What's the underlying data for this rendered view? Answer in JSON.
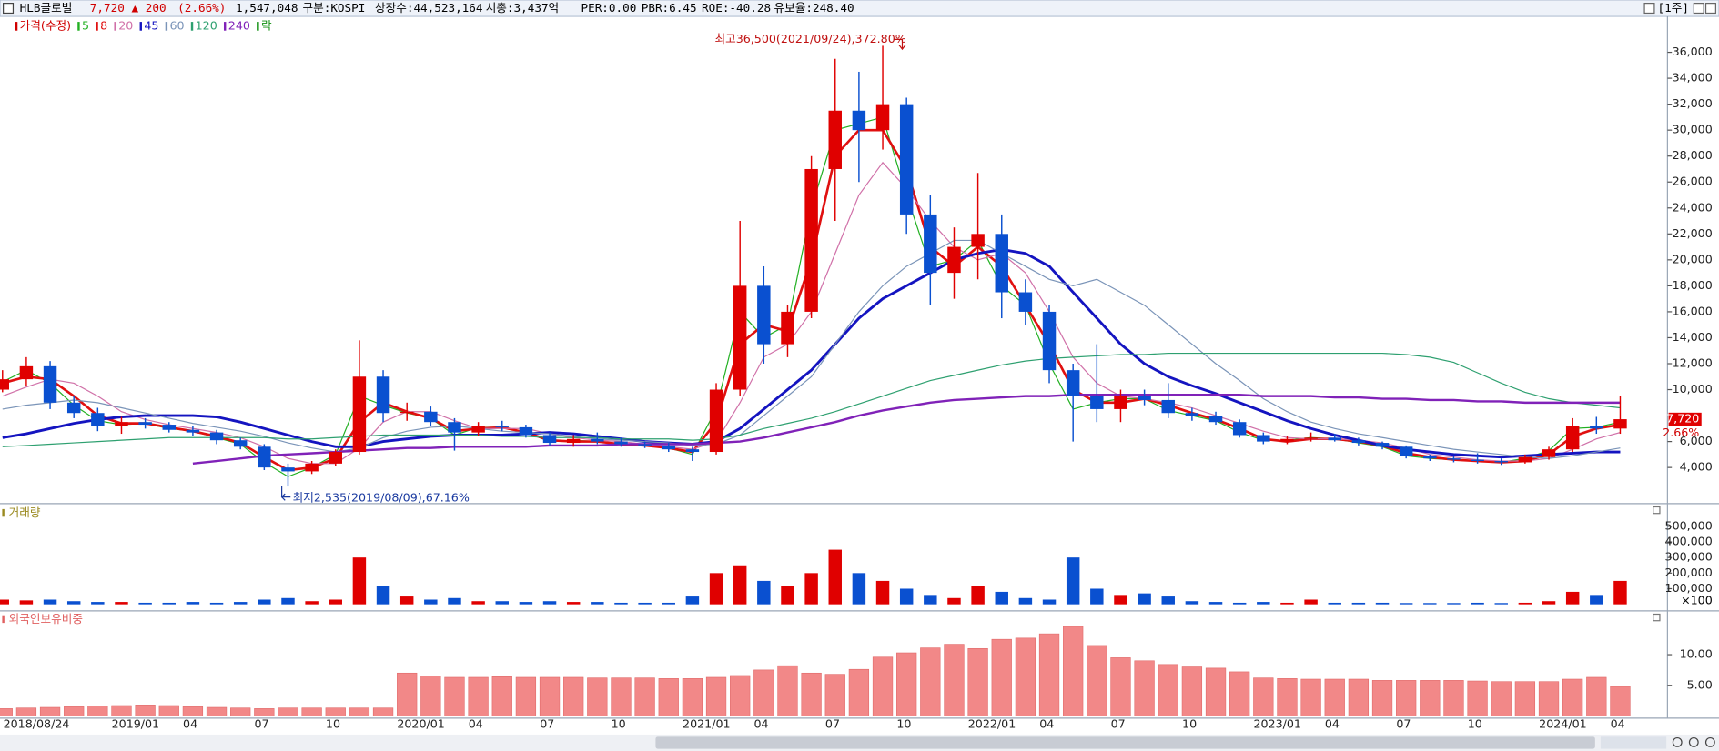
{
  "header": {
    "name": "HLB글로벌",
    "price": "7,720",
    "change": "▲ 200",
    "change_rate": "(2.66%)",
    "volume": "1,547,048",
    "market": "구분:KOSPI",
    "shares": "상장수:44,523,164",
    "market_cap": "시총:3,437억",
    "per": "PER:0.00",
    "pbr": "PBR:6.45",
    "roe": "ROE:-40.28",
    "reserve": "유보율:248.40",
    "period": "[1주]"
  },
  "chart_data": {
    "type": "candlestick",
    "price_legend": {
      "label": "가격(수정)",
      "color": "#d00000"
    },
    "lock_legend": {
      "label": "락",
      "color": "#109010"
    },
    "high_note": "최고36,500(2021/09/24),372.80%",
    "low_note": "최저2,535(2019/08/09),67.16%",
    "last_change": "2.66%",
    "up_color": "#e00000",
    "down_color": "#0a50d0",
    "ylim": [
      2000,
      38000
    ],
    "yticks": [
      {
        "value": 4000,
        "label": "4,000"
      },
      {
        "value": 6000,
        "label": "6,000"
      },
      {
        "value": 10000,
        "label": "10,000"
      },
      {
        "value": 12000,
        "label": "12,000"
      },
      {
        "value": 14000,
        "label": "14,000"
      },
      {
        "value": 16000,
        "label": "16,000"
      },
      {
        "value": 18000,
        "label": "18,000"
      },
      {
        "value": 20000,
        "label": "20,000"
      },
      {
        "value": 22000,
        "label": "22,000"
      },
      {
        "value": 24000,
        "label": "24,000"
      },
      {
        "value": 26000,
        "label": "26,000"
      },
      {
        "value": 28000,
        "label": "28,000"
      },
      {
        "value": 30000,
        "label": "30,000"
      },
      {
        "value": 32000,
        "label": "32,000"
      },
      {
        "value": 34000,
        "label": "34,000"
      },
      {
        "value": 36000,
        "label": "36,000"
      }
    ],
    "categories": [
      "2018/08/24",
      null,
      null,
      null,
      null,
      "2019/01",
      null,
      null,
      "04",
      null,
      null,
      "07",
      null,
      null,
      "10",
      null,
      null,
      "2020/01",
      null,
      null,
      "04",
      null,
      null,
      "07",
      null,
      null,
      "10",
      null,
      null,
      "2021/01",
      null,
      null,
      "04",
      null,
      null,
      "07",
      null,
      null,
      "10",
      null,
      null,
      "2022/01",
      null,
      null,
      "04",
      null,
      null,
      "07",
      null,
      null,
      "10",
      null,
      null,
      "2023/01",
      null,
      null,
      "04",
      null,
      null,
      "07",
      null,
      null,
      "10",
      null,
      null,
      "2024/01",
      null,
      null,
      "04"
    ],
    "open": [
      10000,
      10800,
      11800,
      9000,
      8200,
      7200,
      7500,
      7300,
      6900,
      6700,
      6100,
      5600,
      4000,
      3700,
      4300,
      5200,
      11000,
      8200,
      8300,
      7500,
      6700,
      7200,
      7100,
      6500,
      5900,
      6200,
      6000,
      5800,
      5700,
      5400,
      5200,
      10000,
      18000,
      13500,
      16000,
      27000,
      31500,
      30000,
      32000,
      23500,
      19000,
      21000,
      22000,
      17500,
      16000,
      11500,
      9500,
      8500,
      9500,
      9200,
      8200,
      8000,
      7500,
      6500,
      6000,
      6200,
      6300,
      6100,
      5900,
      5600,
      4900,
      4700,
      4600,
      4500,
      4400,
      4800,
      5400,
      7200,
      7000
    ],
    "high": [
      11500,
      12500,
      12200,
      9500,
      8600,
      7900,
      7800,
      7500,
      7200,
      6900,
      6300,
      5800,
      4300,
      4500,
      5400,
      13800,
      11500,
      9000,
      8700,
      7800,
      7500,
      7600,
      7300,
      6700,
      6500,
      6700,
      6300,
      6000,
      5900,
      5600,
      10500,
      23000,
      19500,
      16500,
      28000,
      35500,
      34500,
      36500,
      32500,
      25000,
      22500,
      26700,
      23500,
      18500,
      16500,
      12000,
      13500,
      10000,
      10000,
      10500,
      8600,
      8300,
      7700,
      6700,
      6400,
      6700,
      6600,
      6300,
      6000,
      5700,
      5000,
      4900,
      5100,
      4700,
      5000,
      5600,
      7800,
      7900,
      9500
    ],
    "low": [
      9800,
      10300,
      8500,
      7800,
      6800,
      6600,
      7000,
      6700,
      6400,
      5800,
      5400,
      3800,
      2535,
      3500,
      4100,
      5000,
      7500,
      7600,
      7200,
      5300,
      6400,
      6800,
      6300,
      5700,
      5600,
      5800,
      5600,
      5500,
      5200,
      4500,
      5000,
      9500,
      12000,
      12500,
      15500,
      23000,
      26000,
      28500,
      22000,
      16500,
      17000,
      18500,
      15500,
      15000,
      10500,
      6000,
      7500,
      7500,
      8800,
      7800,
      7600,
      7300,
      6300,
      5800,
      5800,
      6000,
      6000,
      5700,
      5400,
      4700,
      4500,
      4400,
      4300,
      4200,
      4300,
      4600,
      5200,
      6600,
      6600
    ],
    "close": [
      10800,
      11800,
      9000,
      8200,
      7200,
      7500,
      7300,
      6900,
      6700,
      6100,
      5600,
      4000,
      3700,
      4300,
      5200,
      11000,
      8200,
      8300,
      7500,
      6700,
      7200,
      7100,
      6500,
      5900,
      6200,
      6000,
      5800,
      5700,
      5400,
      5200,
      10000,
      18000,
      13500,
      16000,
      27000,
      31500,
      30000,
      32000,
      23500,
      19000,
      21000,
      22000,
      17500,
      16000,
      11500,
      9500,
      8500,
      9500,
      9200,
      8200,
      8000,
      7500,
      6500,
      6000,
      6200,
      6300,
      6100,
      5900,
      5600,
      4900,
      4700,
      4600,
      4500,
      4400,
      4800,
      5400,
      7200,
      7000,
      7720
    ],
    "series": [
      {
        "name": "5",
        "color": "#22b022",
        "width": 1,
        "values": [
          10600,
          11500,
          10500,
          8800,
          7600,
          7300,
          7400,
          7000,
          6800,
          6300,
          5800,
          4400,
          3300,
          4000,
          5000,
          9500,
          8800,
          8200,
          7800,
          6500,
          7100,
          7100,
          6700,
          6000,
          6100,
          6000,
          5800,
          5700,
          5500,
          5000,
          8500,
          16000,
          14000,
          15000,
          24000,
          30000,
          30500,
          31000,
          25000,
          19500,
          20000,
          21500,
          18000,
          16500,
          12000,
          8500,
          9000,
          9300,
          9300,
          8400,
          8000,
          7600,
          6700,
          6100,
          6100,
          6300,
          6200,
          5900,
          5600,
          4900,
          4700,
          4600,
          4500,
          4400,
          4700,
          5300,
          7000,
          7100,
          7500
        ]
      },
      {
        "name": "8",
        "color": "#e01010",
        "width": 2.2,
        "values": [
          10500,
          11000,
          10800,
          9500,
          8000,
          7400,
          7400,
          7100,
          6800,
          6400,
          5900,
          4800,
          3800,
          4000,
          4700,
          7500,
          9000,
          8300,
          7800,
          6800,
          7000,
          7100,
          6700,
          6100,
          6000,
          6000,
          5800,
          5700,
          5500,
          5200,
          7500,
          13500,
          15000,
          14500,
          20000,
          28000,
          30000,
          30000,
          27000,
          21000,
          19500,
          21000,
          19500,
          16500,
          13500,
          10000,
          9000,
          9000,
          9300,
          8800,
          8200,
          7700,
          7000,
          6200,
          6000,
          6200,
          6200,
          6000,
          5700,
          5100,
          4800,
          4600,
          4500,
          4400,
          4500,
          5000,
          6400,
          7000,
          7300
        ]
      },
      {
        "name": "20",
        "color": "#d070a8",
        "width": 1,
        "values": [
          9500,
          10200,
          10800,
          10500,
          9500,
          8300,
          7700,
          7300,
          7000,
          6700,
          6300,
          5600,
          4700,
          4300,
          4300,
          5500,
          7500,
          8300,
          8300,
          7600,
          7000,
          7000,
          7000,
          6600,
          6300,
          6100,
          6000,
          5800,
          5600,
          5400,
          6000,
          9000,
          12500,
          13500,
          16000,
          20500,
          25000,
          27500,
          25500,
          23000,
          21000,
          20000,
          20500,
          19000,
          16000,
          12500,
          10500,
          9500,
          9300,
          9000,
          8600,
          8000,
          7400,
          6800,
          6300,
          6200,
          6200,
          6100,
          5900,
          5500,
          5000,
          4800,
          4600,
          4500,
          4500,
          4700,
          5400,
          6200,
          6700
        ]
      },
      {
        "name": "45",
        "color": "#1414c0",
        "width": 2.4,
        "values": [
          6300,
          6600,
          7000,
          7400,
          7700,
          7900,
          8000,
          8000,
          8000,
          7900,
          7500,
          7000,
          6500,
          6000,
          5600,
          5600,
          6000,
          6200,
          6400,
          6500,
          6500,
          6500,
          6600,
          6700,
          6600,
          6400,
          6200,
          6000,
          5900,
          5800,
          6000,
          7000,
          8500,
          10000,
          11500,
          13500,
          15500,
          17000,
          18000,
          19000,
          20000,
          20500,
          20800,
          20500,
          19500,
          17500,
          15500,
          13500,
          12000,
          11000,
          10300,
          9700,
          9000,
          8300,
          7600,
          7000,
          6500,
          6100,
          5700,
          5400,
          5200,
          5000,
          4900,
          4800,
          4900,
          5000,
          5100,
          5200,
          5200
        ]
      },
      {
        "name": "60",
        "color": "#7a94b8",
        "width": 1,
        "values": [
          8500,
          8800,
          9000,
          9200,
          9000,
          8600,
          8200,
          7800,
          7400,
          7100,
          6800,
          6400,
          5900,
          5500,
          5200,
          5500,
          6300,
          6800,
          7100,
          7200,
          7000,
          6800,
          6700,
          6600,
          6400,
          6200,
          6100,
          6000,
          5900,
          5700,
          5800,
          6500,
          8000,
          9500,
          11000,
          13500,
          16000,
          18000,
          19500,
          20500,
          21500,
          21500,
          20500,
          19500,
          18500,
          18000,
          18500,
          17500,
          16500,
          15000,
          13500,
          12000,
          10700,
          9300,
          8300,
          7500,
          7000,
          6600,
          6300,
          6000,
          5700,
          5400,
          5200,
          5000,
          4800,
          4700,
          4900,
          5200,
          5500
        ]
      },
      {
        "name": "120",
        "color": "#2ea070",
        "width": 1,
        "values": [
          5600,
          5700,
          5800,
          5900,
          6000,
          6100,
          6200,
          6300,
          6300,
          6300,
          6300,
          6300,
          6200,
          6200,
          6300,
          6400,
          6500,
          6500,
          6500,
          6500,
          6500,
          6400,
          6400,
          6300,
          6300,
          6300,
          6200,
          6200,
          6200,
          6100,
          6200,
          6500,
          7000,
          7400,
          7800,
          8300,
          8900,
          9500,
          10100,
          10700,
          11100,
          11500,
          11900,
          12200,
          12400,
          12500,
          12600,
          12700,
          12700,
          12800,
          12800,
          12800,
          12800,
          12800,
          12800,
          12800,
          12800,
          12800,
          12800,
          12700,
          12500,
          12100,
          11300,
          10500,
          9800,
          9300,
          9000,
          8800,
          8600
        ]
      },
      {
        "name": "240",
        "color": "#8022b8",
        "width": 2,
        "values": [
          null,
          null,
          null,
          null,
          null,
          null,
          null,
          null,
          4300,
          4500,
          4700,
          4900,
          5000,
          5100,
          5200,
          5300,
          5400,
          5500,
          5500,
          5600,
          5600,
          5600,
          5600,
          5700,
          5700,
          5700,
          5800,
          5800,
          5800,
          5800,
          5900,
          6000,
          6300,
          6700,
          7100,
          7500,
          8000,
          8400,
          8700,
          9000,
          9200,
          9300,
          9400,
          9500,
          9500,
          9600,
          9600,
          9600,
          9600,
          9600,
          9600,
          9600,
          9600,
          9500,
          9500,
          9500,
          9400,
          9400,
          9300,
          9300,
          9200,
          9200,
          9100,
          9100,
          9000,
          9000,
          9000,
          9000,
          9000
        ]
      }
    ],
    "volume": {
      "title": "거래량",
      "unit_note": "×100",
      "ylim": [
        0,
        600000
      ],
      "yticks": [
        {
          "value": 100000,
          "label": "100,000"
        },
        {
          "value": 200000,
          "label": "200,000"
        },
        {
          "value": 300000,
          "label": "300,000"
        },
        {
          "value": 400000,
          "label": "400,000"
        },
        {
          "value": 500000,
          "label": "500,000"
        }
      ],
      "values": [
        30000,
        25000,
        30000,
        20000,
        15000,
        15000,
        10000,
        10000,
        15000,
        10000,
        15000,
        30000,
        40000,
        20000,
        30000,
        300000,
        120000,
        50000,
        30000,
        40000,
        20000,
        20000,
        15000,
        20000,
        15000,
        15000,
        10000,
        10000,
        10000,
        50000,
        200000,
        250000,
        150000,
        120000,
        200000,
        350000,
        200000,
        150000,
        100000,
        60000,
        40000,
        120000,
        80000,
        40000,
        30000,
        300000,
        100000,
        60000,
        70000,
        50000,
        20000,
        15000,
        10000,
        15000,
        10000,
        30000,
        10000,
        10000,
        10000,
        8000,
        8000,
        8000,
        10000,
        8000,
        10000,
        20000,
        80000,
        60000,
        150000
      ]
    },
    "ownership": {
      "title": "외국인보유비중",
      "color": "#f28888",
      "ylim": [
        0,
        16
      ],
      "yticks": [
        {
          "value": 5,
          "label": "5.00"
        },
        {
          "value": 10,
          "label": "10.00"
        }
      ],
      "values": [
        1.2,
        1.3,
        1.4,
        1.5,
        1.6,
        1.7,
        1.8,
        1.7,
        1.5,
        1.4,
        1.3,
        1.2,
        1.3,
        1.3,
        1.3,
        1.3,
        1.3,
        7.0,
        6.5,
        6.3,
        6.3,
        6.4,
        6.3,
        6.3,
        6.3,
        6.2,
        6.2,
        6.2,
        6.1,
        6.1,
        6.3,
        6.6,
        7.5,
        8.2,
        7.0,
        6.8,
        7.6,
        9.6,
        10.3,
        11.1,
        11.7,
        11.0,
        12.5,
        12.7,
        13.4,
        14.6,
        11.5,
        9.5,
        9.0,
        8.4,
        8.0,
        7.8,
        7.2,
        6.2,
        6.1,
        6.0,
        6.0,
        6.0,
        5.8,
        5.8,
        5.8,
        5.8,
        5.7,
        5.6,
        5.6,
        5.6,
        6.0,
        6.3,
        4.8
      ]
    }
  }
}
